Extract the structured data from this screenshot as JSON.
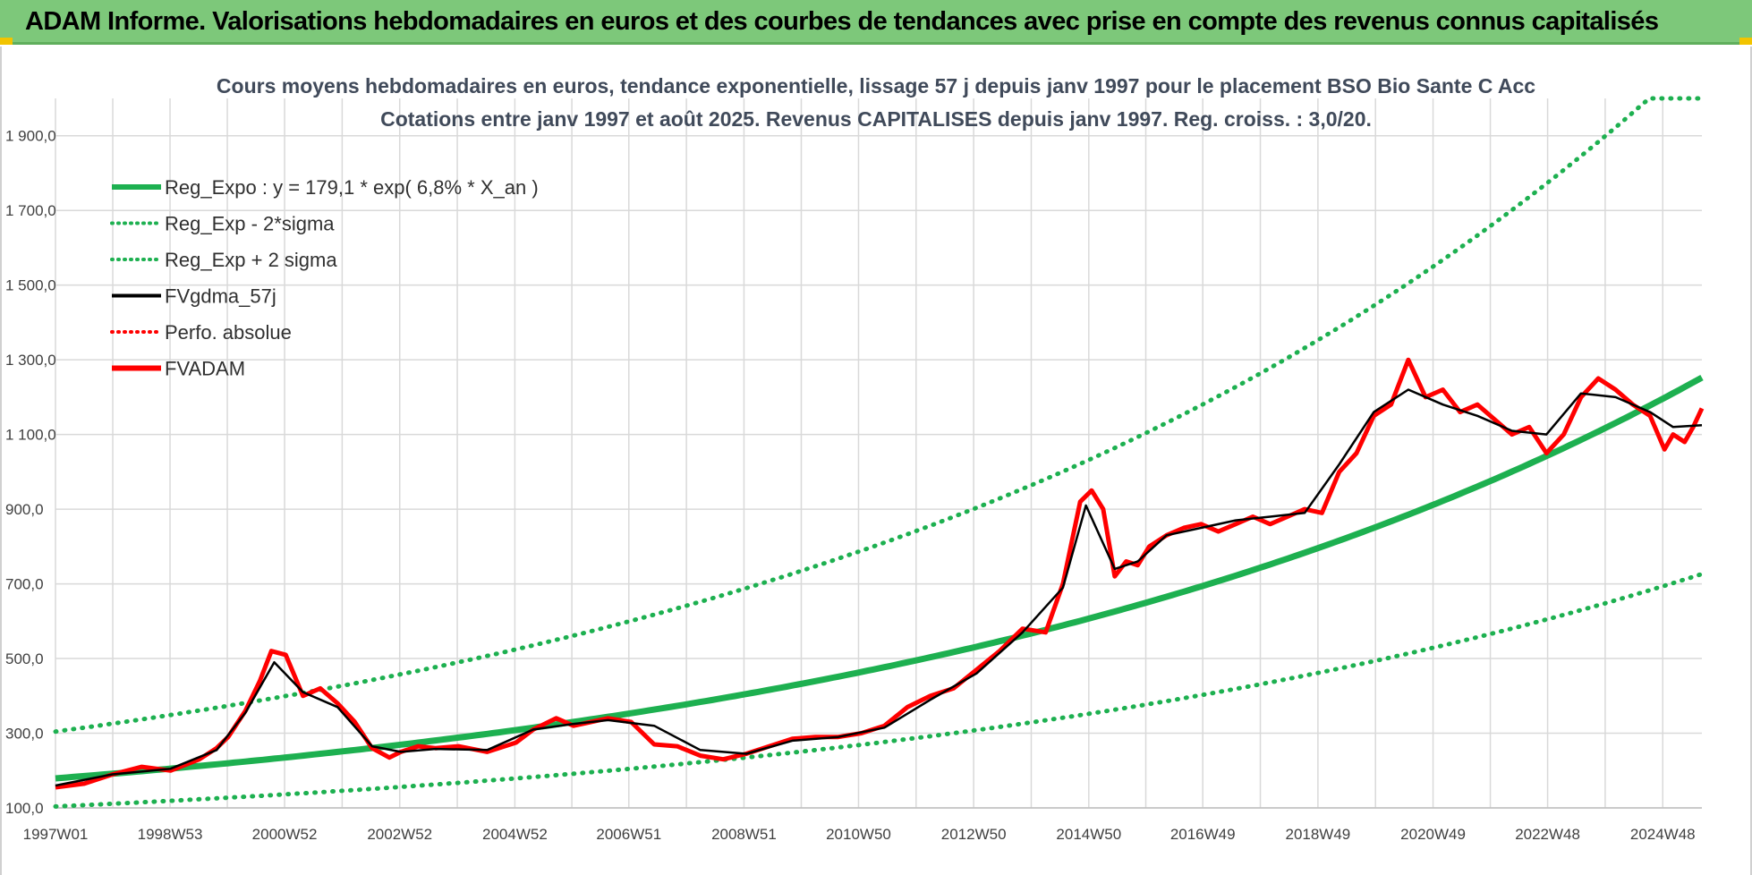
{
  "header": {
    "title": "ADAM Informe. Valorisations hebdomadaires en euros et des courbes de tendances avec prise en compte des revenus connus capitalisés"
  },
  "colors": {
    "banner": "#7dc87a",
    "trend": "#1db050",
    "fvadam": "#ff0000",
    "fvgdma": "#000000",
    "grid": "#d9d9d9"
  },
  "chart_data": {
    "type": "line",
    "title": "Cours moyens hebdomadaires en euros, tendance exponentielle, lissage 57 j depuis janv 1997 pour le placement BSO Bio Sante C Acc",
    "subtitle": "Cotations entre janv 1997 et août 2025. Revenus CAPITALISES depuis janv 1997. Reg. croiss. : 3,0/20.",
    "xlabel": "",
    "ylabel": "",
    "x_tick_labels": [
      "1997W01",
      "1998W53",
      "2000W52",
      "2002W52",
      "2004W52",
      "2006W51",
      "2008W51",
      "2010W50",
      "2012W50",
      "2014W50",
      "2016W49",
      "2018W49",
      "2020W49",
      "2022W48",
      "2024W48"
    ],
    "x_tick_years": [
      1997.0,
      1998.99,
      2000.98,
      2002.98,
      2004.98,
      2006.96,
      2008.96,
      2010.95,
      2012.95,
      2014.95,
      2016.93,
      2018.93,
      2020.93,
      2022.92,
      2024.92
    ],
    "xlim": [
      1997.0,
      2025.6
    ],
    "y_tick_labels": [
      "100,0",
      "300,0",
      "500,0",
      "700,0",
      "900,0",
      "1 100,0",
      "1 300,0",
      "1 500,0",
      "1 700,0",
      "1 900,0"
    ],
    "y_ticks": [
      100,
      300,
      500,
      700,
      900,
      1100,
      1300,
      1500,
      1700,
      1900
    ],
    "ylim": [
      100,
      2000
    ],
    "grid": true,
    "legend_position": "top-left",
    "legend": [
      {
        "label": "Reg_Expo : y = 179,1 * exp( 6,8% *  X_an )",
        "color": "#1db050",
        "style": "solid-thick"
      },
      {
        "label": "Reg_Exp - 2*sigma",
        "color": "#1db050",
        "style": "dotted"
      },
      {
        "label": "Reg_Exp + 2 sigma",
        "color": "#1db050",
        "style": "dotted"
      },
      {
        "label": "FVgdma_57j",
        "color": "#000000",
        "style": "solid"
      },
      {
        "label": "Perfo. absolue",
        "color": "#ff0000",
        "style": "dotted"
      },
      {
        "label": "FVADAM",
        "color": "#ff0000",
        "style": "solid-thick"
      }
    ],
    "regression": {
      "a": 179.1,
      "rate": 0.068,
      "lower_factor": 0.58,
      "upper_factor": 1.7,
      "cap": 2000
    },
    "series": [
      {
        "name": "FVADAM",
        "x": [
          1997.0,
          1997.5,
          1998.0,
          1998.5,
          1999.0,
          1999.5,
          1999.8,
          2000.0,
          2000.3,
          2000.55,
          2000.75,
          2001.0,
          2001.3,
          2001.6,
          2001.9,
          2002.2,
          2002.5,
          2002.8,
          2003.0,
          2003.3,
          2003.6,
          2004.0,
          2004.5,
          2005.0,
          2005.3,
          2005.7,
          2006.0,
          2006.3,
          2006.6,
          2007.0,
          2007.4,
          2007.8,
          2008.2,
          2008.6,
          2009.0,
          2009.4,
          2009.8,
          2010.2,
          2010.6,
          2011.0,
          2011.4,
          2011.8,
          2012.2,
          2012.6,
          2013.0,
          2013.4,
          2013.8,
          2014.2,
          2014.5,
          2014.8,
          2015.0,
          2015.2,
          2015.4,
          2015.6,
          2015.8,
          2016.0,
          2016.3,
          2016.6,
          2016.9,
          2017.2,
          2017.5,
          2017.8,
          2018.1,
          2018.4,
          2018.7,
          2019.0,
          2019.3,
          2019.6,
          2019.9,
          2020.2,
          2020.5,
          2020.8,
          2021.1,
          2021.4,
          2021.7,
          2022.0,
          2022.3,
          2022.6,
          2022.9,
          2023.2,
          2023.5,
          2023.8,
          2024.1,
          2024.4,
          2024.7,
          2024.95,
          2025.1,
          2025.3,
          2025.45,
          2025.6
        ],
        "values": [
          155,
          165,
          190,
          210,
          200,
          230,
          260,
          290,
          360,
          440,
          520,
          510,
          400,
          420,
          380,
          330,
          260,
          235,
          250,
          265,
          260,
          265,
          250,
          275,
          310,
          340,
          320,
          330,
          340,
          330,
          270,
          265,
          240,
          230,
          245,
          265,
          285,
          290,
          290,
          300,
          320,
          370,
          400,
          420,
          470,
          520,
          580,
          570,
          700,
          920,
          950,
          900,
          720,
          760,
          750,
          800,
          830,
          850,
          860,
          840,
          860,
          880,
          860,
          880,
          900,
          890,
          1000,
          1050,
          1150,
          1180,
          1300,
          1200,
          1220,
          1160,
          1180,
          1140,
          1100,
          1120,
          1050,
          1100,
          1200,
          1250,
          1220,
          1180,
          1150,
          1060,
          1100,
          1080,
          1120,
          1170
        ]
      },
      {
        "name": "FVgdma_57j",
        "x": [
          1997.0,
          1998.0,
          1999.0,
          1999.8,
          2000.3,
          2000.8,
          2001.3,
          2001.9,
          2002.5,
          2003.0,
          2003.6,
          2004.5,
          2005.3,
          2006.0,
          2006.6,
          2007.4,
          2008.2,
          2009.0,
          2009.8,
          2010.6,
          2011.4,
          2012.2,
          2013.0,
          2013.8,
          2014.5,
          2014.9,
          2015.4,
          2015.8,
          2016.3,
          2016.9,
          2017.5,
          2018.1,
          2018.7,
          2019.3,
          2019.9,
          2020.5,
          2021.1,
          2021.7,
          2022.3,
          2022.9,
          2023.5,
          2024.1,
          2024.7,
          2025.1,
          2025.6
        ],
        "values": [
          160,
          190,
          205,
          255,
          355,
          490,
          410,
          370,
          265,
          250,
          258,
          255,
          310,
          325,
          335,
          320,
          255,
          245,
          280,
          290,
          315,
          390,
          460,
          570,
          690,
          910,
          740,
          760,
          830,
          850,
          870,
          880,
          890,
          1020,
          1160,
          1220,
          1180,
          1150,
          1110,
          1100,
          1210,
          1200,
          1160,
          1120,
          1125
        ]
      }
    ]
  }
}
